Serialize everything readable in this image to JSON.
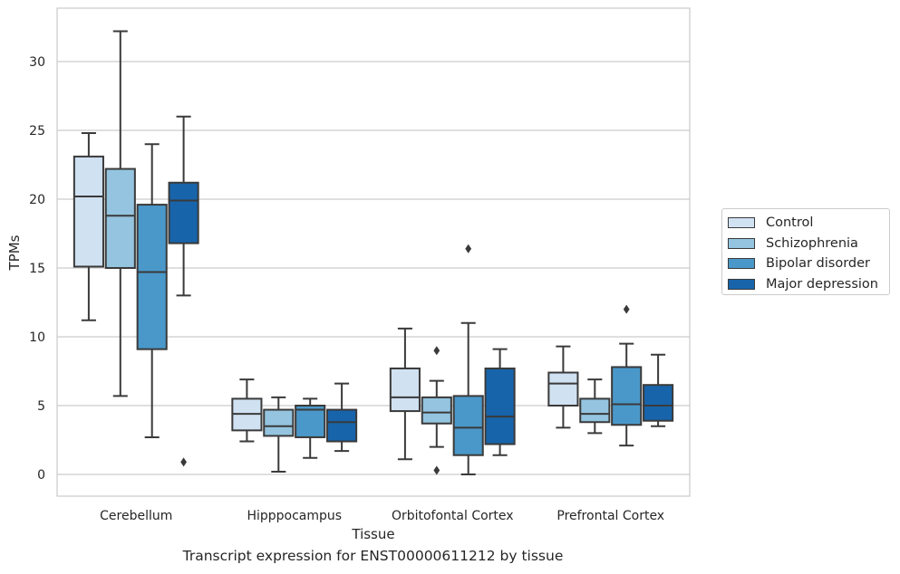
{
  "chart_data": {
    "type": "box",
    "xlabel": "Tissue",
    "ylabel": "TPMs",
    "caption": "Transcript expression for ENST00000611212 by tissue",
    "ylim": [
      -1.5,
      34
    ],
    "yticks": [
      0,
      5,
      10,
      15,
      20,
      25,
      30
    ],
    "grid": "horizontal",
    "legend_position": "right",
    "categories": [
      "Cerebellum",
      "Hipppocampus",
      "Orbitofontal Cortex",
      "Prefrontal Cortex"
    ],
    "series": [
      {
        "name": "Control",
        "color": "#d0e1f2",
        "boxes": [
          {
            "whislo": 11.2,
            "q1": 15.1,
            "med": 20.2,
            "q3": 23.1,
            "whishi": 24.8,
            "fliers": []
          },
          {
            "whislo": 2.4,
            "q1": 3.2,
            "med": 4.4,
            "q3": 5.5,
            "whishi": 6.9,
            "fliers": []
          },
          {
            "whislo": 1.1,
            "q1": 4.6,
            "med": 5.6,
            "q3": 7.7,
            "whishi": 10.6,
            "fliers": []
          },
          {
            "whislo": 3.4,
            "q1": 5.0,
            "med": 6.6,
            "q3": 7.4,
            "whishi": 9.3,
            "fliers": []
          }
        ]
      },
      {
        "name": "Schizophrenia",
        "color": "#94c4df",
        "boxes": [
          {
            "whislo": 5.7,
            "q1": 15.0,
            "med": 18.8,
            "q3": 22.2,
            "whishi": 32.2,
            "fliers": []
          },
          {
            "whislo": 0.2,
            "q1": 2.8,
            "med": 3.5,
            "q3": 4.7,
            "whishi": 5.6,
            "fliers": []
          },
          {
            "whislo": 2.0,
            "q1": 3.7,
            "med": 4.5,
            "q3": 5.6,
            "whishi": 6.8,
            "fliers": [
              9.0,
              0.3
            ]
          },
          {
            "whislo": 3.0,
            "q1": 3.8,
            "med": 4.4,
            "q3": 5.5,
            "whishi": 6.9,
            "fliers": []
          }
        ]
      },
      {
        "name": "Bipolar disorder",
        "color": "#4a98c9",
        "boxes": [
          {
            "whislo": 2.7,
            "q1": 9.1,
            "med": 14.7,
            "q3": 19.6,
            "whishi": 24.0,
            "fliers": []
          },
          {
            "whislo": 1.2,
            "q1": 2.7,
            "med": 4.7,
            "q3": 5.0,
            "whishi": 5.5,
            "fliers": []
          },
          {
            "whislo": 0.0,
            "q1": 1.4,
            "med": 3.4,
            "q3": 5.7,
            "whishi": 11.0,
            "fliers": [
              16.4
            ]
          },
          {
            "whislo": 2.1,
            "q1": 3.6,
            "med": 5.1,
            "q3": 7.8,
            "whishi": 9.5,
            "fliers": [
              12.0
            ]
          }
        ]
      },
      {
        "name": "Major depression",
        "color": "#1764ab",
        "boxes": [
          {
            "whislo": 13.0,
            "q1": 16.8,
            "med": 19.9,
            "q3": 21.2,
            "whishi": 26.0,
            "fliers": [
              0.9
            ]
          },
          {
            "whislo": 1.7,
            "q1": 2.4,
            "med": 3.8,
            "q3": 4.7,
            "whishi": 6.6,
            "fliers": []
          },
          {
            "whislo": 1.4,
            "q1": 2.2,
            "med": 4.2,
            "q3": 7.7,
            "whishi": 9.1,
            "fliers": []
          },
          {
            "whislo": 3.5,
            "q1": 3.9,
            "med": 5.0,
            "q3": 6.5,
            "whishi": 8.7,
            "fliers": []
          }
        ]
      }
    ]
  }
}
